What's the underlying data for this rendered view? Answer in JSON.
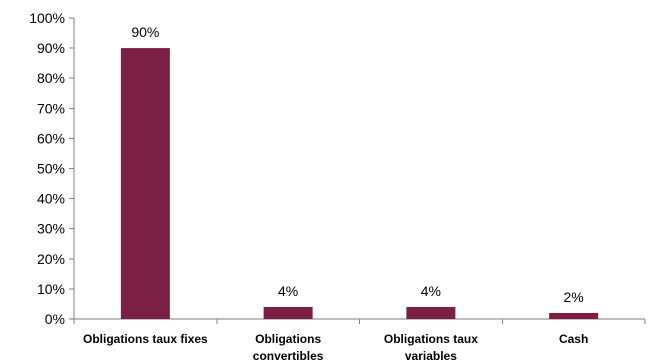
{
  "chart_data": {
    "type": "bar",
    "categories": [
      [
        "Obligations taux fixes"
      ],
      [
        "Obligations",
        "convertibles"
      ],
      [
        "Obligations taux",
        "variables"
      ],
      [
        "Cash"
      ]
    ],
    "values": [
      90,
      4,
      4,
      2
    ],
    "data_labels": [
      "90%",
      "4%",
      "4%",
      "2%"
    ],
    "y_ticks": [
      "0%",
      "10%",
      "20%",
      "30%",
      "40%",
      "50%",
      "60%",
      "70%",
      "80%",
      "90%",
      "100%"
    ],
    "ylim": [
      0,
      100
    ],
    "bar_color": "#7b1f45",
    "title": "",
    "xlabel": "",
    "ylabel": "",
    "grid": false,
    "legend": "none"
  }
}
